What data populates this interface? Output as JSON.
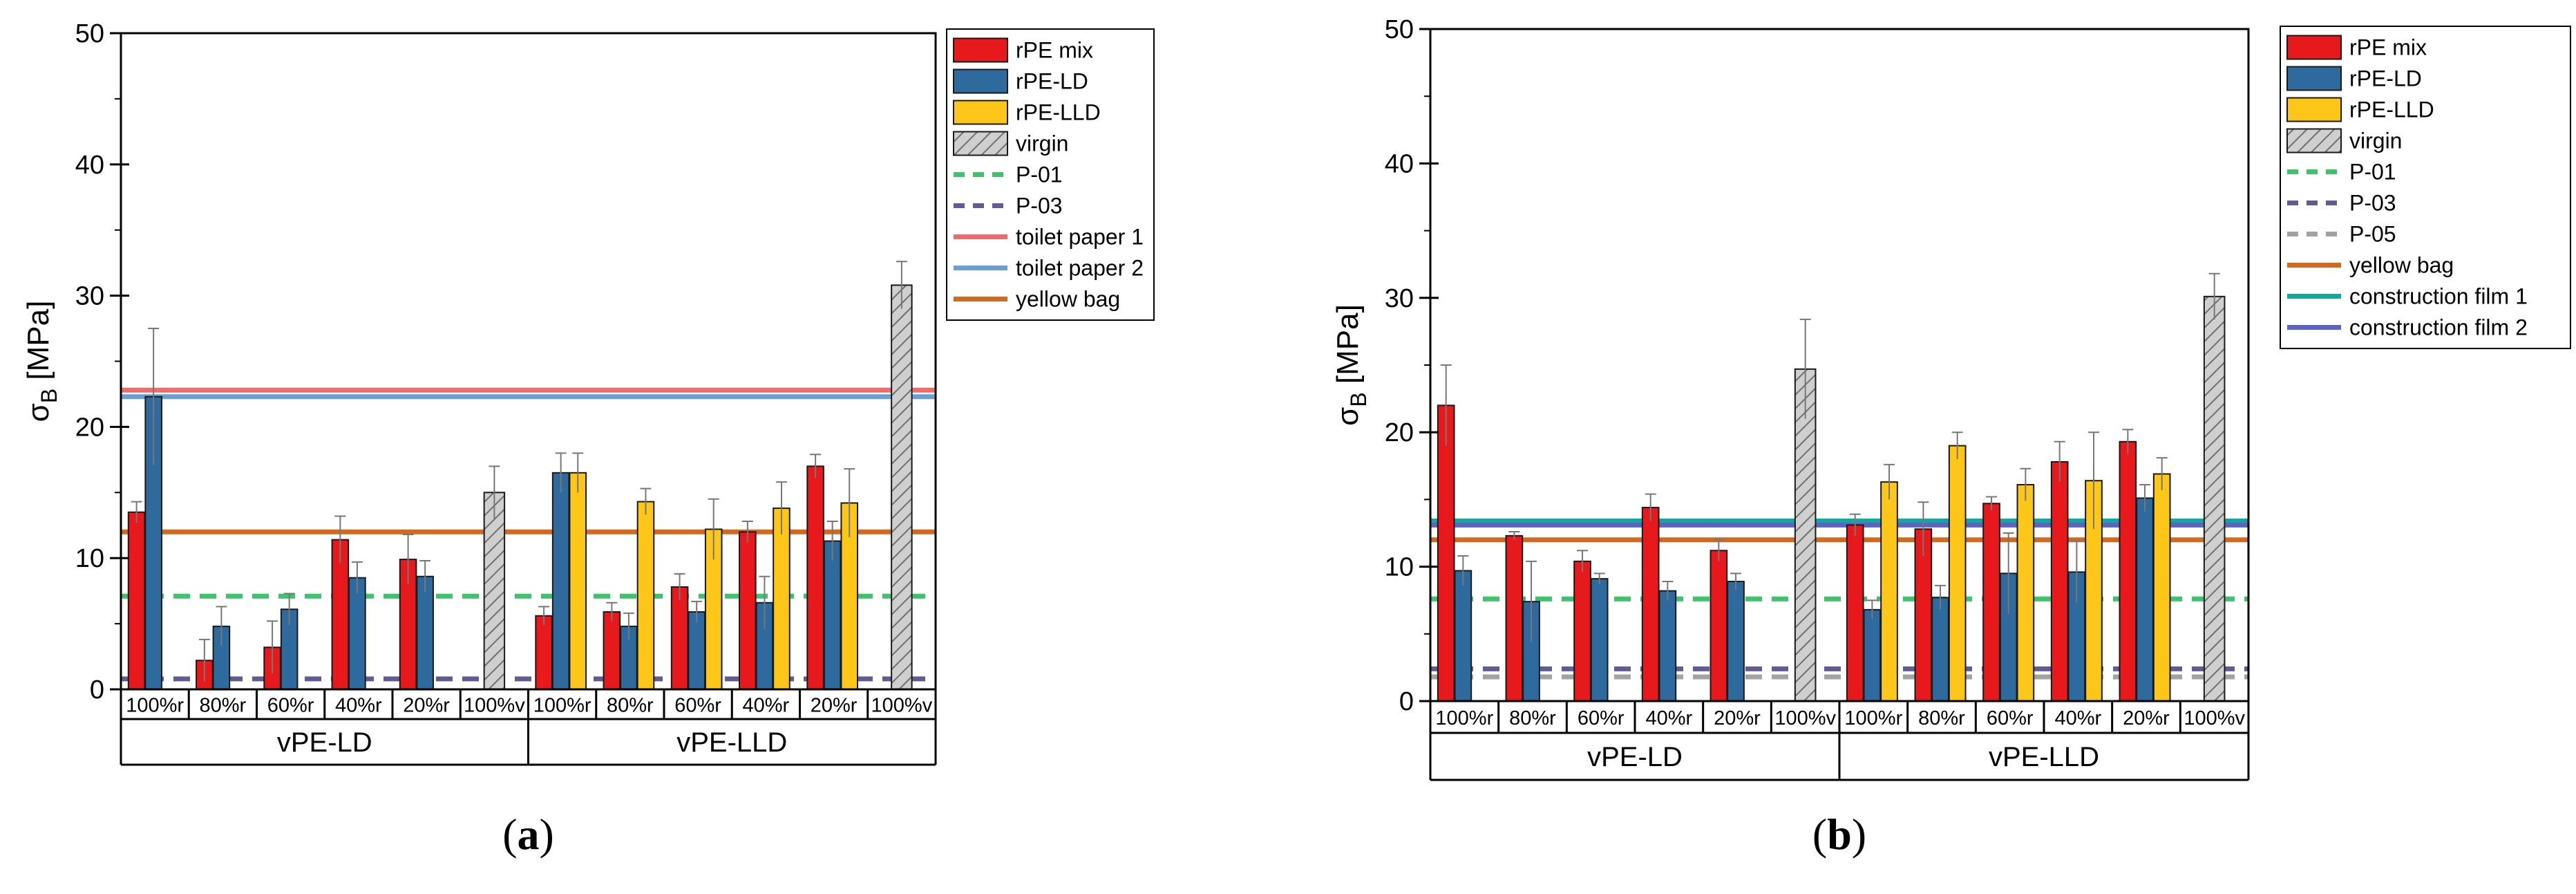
{
  "colors": {
    "rpe_mix": "#e8191c",
    "rpe_ld": "#2e6a9e",
    "rpe_lld": "#ffc61a",
    "virgin": "#c9c9c9",
    "p01": "#3dc46a",
    "p03": "#5e5c92",
    "p05": "#a2a2a2",
    "toilet_paper_1": "#f26a6a",
    "toilet_paper_2": "#6a9fd2",
    "yellow_bag": "#d2691e",
    "construction_film_1": "#12a8a0",
    "construction_film_2": "#5b63c4"
  },
  "chart_data": [
    {
      "panel": "(a)",
      "panel_letter": "a",
      "type": "bar",
      "ylabel": "σB [MPa]",
      "ylabel_main": "σ",
      "ylabel_sub": "B",
      "ylabel_unit": " [MPa]",
      "ylim": [
        0,
        50
      ],
      "yticks": [
        "0",
        "10",
        "20",
        "30",
        "40",
        "50"
      ],
      "groups": [
        "vPE-LD",
        "vPE-LLD"
      ],
      "categories": [
        "100%r",
        "80%r",
        "60%r",
        "40%r",
        "20%r",
        "100%v",
        "100%r",
        "80%r",
        "60%r",
        "40%r",
        "20%r",
        "100%v"
      ],
      "series": [
        {
          "name": "rPE mix",
          "key": "rpe_mix",
          "values": [
            13.5,
            2.2,
            3.2,
            11.4,
            9.9,
            null,
            5.6,
            5.9,
            7.8,
            12.0,
            17.0,
            null
          ],
          "errors": [
            0.8,
            1.6,
            2.0,
            1.8,
            1.9,
            null,
            0.7,
            0.7,
            1.0,
            0.8,
            0.9,
            null
          ]
        },
        {
          "name": "rPE-LD",
          "key": "rpe_ld",
          "values": [
            22.3,
            4.8,
            6.1,
            8.5,
            8.6,
            null,
            16.5,
            4.8,
            5.9,
            6.6,
            11.3,
            null
          ],
          "errors": [
            5.2,
            1.5,
            1.2,
            1.2,
            1.2,
            null,
            1.5,
            1.0,
            0.8,
            2.0,
            1.5,
            null
          ]
        },
        {
          "name": "rPE-LLD",
          "key": "rpe_lld",
          "values": [
            null,
            null,
            null,
            null,
            null,
            null,
            16.5,
            14.3,
            12.2,
            13.8,
            14.2,
            null
          ],
          "errors": [
            null,
            null,
            null,
            null,
            null,
            null,
            1.5,
            1.0,
            2.3,
            2.0,
            2.6,
            null
          ]
        },
        {
          "name": "virgin",
          "key": "virgin",
          "values": [
            null,
            null,
            null,
            null,
            null,
            15.0,
            null,
            null,
            null,
            null,
            null,
            30.8
          ],
          "errors": [
            null,
            null,
            null,
            null,
            null,
            2.0,
            null,
            null,
            null,
            null,
            null,
            1.8
          ]
        }
      ],
      "reference_lines": [
        {
          "name": "P-01",
          "key": "p01",
          "value": 7.1,
          "style": "dashed"
        },
        {
          "name": "P-03",
          "key": "p03",
          "value": 0.8,
          "style": "dashed"
        },
        {
          "name": "toilet paper 1",
          "key": "toilet_paper_1",
          "value": 22.8,
          "style": "solid"
        },
        {
          "name": "toilet paper 2",
          "key": "toilet_paper_2",
          "value": 22.3,
          "style": "solid"
        },
        {
          "name": "yellow bag",
          "key": "yellow_bag",
          "value": 12.0,
          "style": "solid"
        }
      ],
      "legend_position": "outside-right"
    },
    {
      "panel": "(b)",
      "panel_letter": "b",
      "type": "bar",
      "ylabel": "σB [MPa]",
      "ylabel_main": "σ",
      "ylabel_sub": "B",
      "ylabel_unit": " [MPa]",
      "ylim": [
        0,
        50
      ],
      "yticks": [
        "0",
        "10",
        "20",
        "30",
        "40",
        "50"
      ],
      "groups": [
        "vPE-LD",
        "vPE-LLD"
      ],
      "categories": [
        "100%r",
        "80%r",
        "60%r",
        "40%r",
        "20%r",
        "100%v",
        "100%r",
        "80%r",
        "60%r",
        "40%r",
        "20%r",
        "100%v"
      ],
      "series": [
        {
          "name": "rPE mix",
          "key": "rpe_mix",
          "values": [
            22.0,
            12.3,
            10.4,
            14.4,
            11.2,
            null,
            13.1,
            12.8,
            14.7,
            17.8,
            19.3,
            null
          ],
          "errors": [
            3.0,
            0.3,
            0.8,
            1.0,
            0.8,
            null,
            0.8,
            2.0,
            0.5,
            1.5,
            0.9,
            null
          ]
        },
        {
          "name": "rPE-LD",
          "key": "rpe_ld",
          "values": [
            9.7,
            7.4,
            9.1,
            8.2,
            8.9,
            null,
            6.8,
            7.7,
            9.5,
            9.6,
            15.1,
            null
          ],
          "errors": [
            1.1,
            3.0,
            0.4,
            0.7,
            0.6,
            null,
            0.7,
            0.9,
            3.0,
            2.3,
            1.0,
            null
          ]
        },
        {
          "name": "rPE-LLD",
          "key": "rpe_lld",
          "values": [
            null,
            null,
            null,
            null,
            null,
            null,
            16.3,
            19.0,
            16.1,
            16.4,
            16.9,
            null
          ],
          "errors": [
            null,
            null,
            null,
            null,
            null,
            null,
            1.3,
            1.0,
            1.2,
            3.6,
            1.2,
            null
          ]
        },
        {
          "name": "virgin",
          "key": "virgin",
          "values": [
            null,
            null,
            null,
            null,
            null,
            24.7,
            null,
            null,
            null,
            null,
            null,
            30.1
          ],
          "errors": [
            null,
            null,
            null,
            null,
            null,
            3.7,
            null,
            null,
            null,
            null,
            null,
            1.7
          ]
        }
      ],
      "reference_lines": [
        {
          "name": "P-01",
          "key": "p01",
          "value": 7.6,
          "style": "dashed"
        },
        {
          "name": "P-03",
          "key": "p03",
          "value": 2.4,
          "style": "dashed"
        },
        {
          "name": "P-05",
          "key": "p05",
          "value": 1.8,
          "style": "dashed"
        },
        {
          "name": "yellow bag",
          "key": "yellow_bag",
          "value": 12.0,
          "style": "solid"
        },
        {
          "name": "construction film 1",
          "key": "construction_film_1",
          "value": 13.4,
          "style": "solid"
        },
        {
          "name": "construction film 2",
          "key": "construction_film_2",
          "value": 13.1,
          "style": "solid"
        }
      ],
      "legend_position": "outside-right"
    }
  ]
}
